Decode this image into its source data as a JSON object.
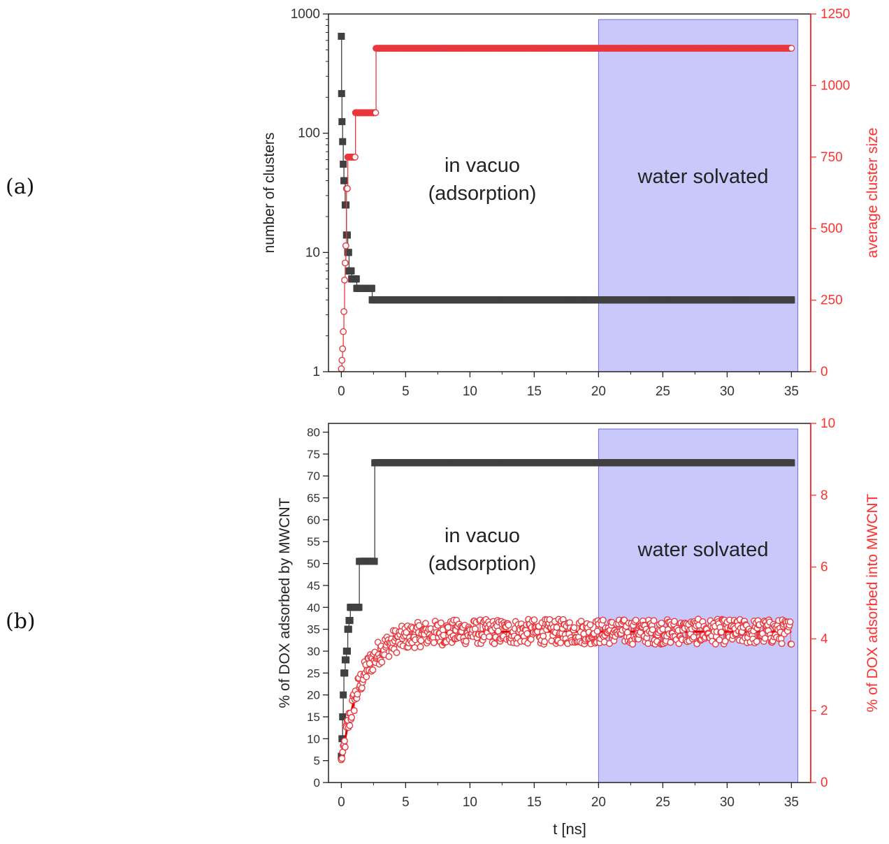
{
  "colors": {
    "black_series": "#404040",
    "red_series": "#e8393f",
    "red_axis": "#ff3030",
    "water_region": "#aaaaf8",
    "water_border": "#6a6af0"
  },
  "panels": {
    "a": {
      "label": "(a)"
    },
    "b": {
      "label": "(b)"
    }
  },
  "chart_data": [
    {
      "id": "a",
      "type": "scatter",
      "title": "",
      "xlabel": "",
      "x_ticks": [
        "0",
        "5",
        "10",
        "15",
        "20",
        "25",
        "30",
        "35"
      ],
      "xlim": [
        -1,
        36.5
      ],
      "ylabel": "number of clusters",
      "ylabel_right": "average cluster size",
      "y_scale": "log",
      "ylim": [
        1,
        1000
      ],
      "y_ticks": [
        "1",
        "10",
        "100",
        "1000"
      ],
      "y2lim": [
        0,
        1250
      ],
      "y2_ticks": [
        "0",
        "250",
        "500",
        "750",
        "1000",
        "1250"
      ],
      "shaded_region": {
        "x_start": 20,
        "x_end": 35.5,
        "label": "water solvated"
      },
      "annotation": {
        "line1": "in vacuo",
        "line2": "(adsorption)"
      },
      "series": [
        {
          "name": "number of clusters",
          "axis": "left",
          "marker": "square",
          "steps": [
            [
              0,
              650
            ],
            [
              0.02,
              215
            ],
            [
              0.05,
              125
            ],
            [
              0.1,
              85
            ],
            [
              0.15,
              55
            ],
            [
              0.2,
              40
            ],
            [
              0.3,
              25
            ],
            [
              0.4,
              14
            ],
            [
              0.5,
              10
            ],
            [
              0.6,
              7
            ],
            [
              0.8,
              6
            ],
            [
              1.2,
              5
            ],
            [
              2.4,
              4
            ],
            [
              35,
              4
            ]
          ]
        },
        {
          "name": "average cluster size",
          "axis": "right",
          "marker": "open-circle",
          "steps": [
            [
              0,
              10
            ],
            [
              0.05,
              40
            ],
            [
              0.1,
              80
            ],
            [
              0.15,
              140
            ],
            [
              0.2,
              210
            ],
            [
              0.25,
              320
            ],
            [
              0.3,
              380
            ],
            [
              0.35,
              440
            ],
            [
              0.4,
              640
            ],
            [
              0.5,
              750
            ],
            [
              1.0,
              750
            ],
            [
              1.1,
              905
            ],
            [
              2.6,
              905
            ],
            [
              2.7,
              1130
            ],
            [
              35,
              1130
            ]
          ]
        }
      ]
    },
    {
      "id": "b",
      "type": "scatter",
      "title": "",
      "xlabel": "t [ns]",
      "x_ticks": [
        "0",
        "5",
        "10",
        "15",
        "20",
        "25",
        "30",
        "35"
      ],
      "xlim": [
        -1,
        36.5
      ],
      "ylabel": "% of DOX adsorbed by MWCNT",
      "ylabel_right": "% of DOX adsorbed into MWCNT",
      "ylim": [
        0,
        82
      ],
      "y_ticks": [
        "0",
        "5",
        "10",
        "15",
        "20",
        "25",
        "30",
        "35",
        "40",
        "45",
        "50",
        "55",
        "60",
        "65",
        "70",
        "75",
        "80"
      ],
      "y2lim": [
        0,
        10
      ],
      "y2_ticks": [
        "0",
        "2",
        "4",
        "6",
        "8",
        "10"
      ],
      "shaded_region": {
        "x_start": 20,
        "x_end": 35.5,
        "label": "water solvated"
      },
      "annotation": {
        "line1": "in vacuo",
        "line2": "(adsorption)"
      },
      "series": [
        {
          "name": "% of DOX adsorbed by MWCNT",
          "axis": "left",
          "marker": "square",
          "steps": [
            [
              0,
              6
            ],
            [
              0.05,
              10
            ],
            [
              0.1,
              15
            ],
            [
              0.15,
              20
            ],
            [
              0.2,
              25
            ],
            [
              0.3,
              28
            ],
            [
              0.4,
              30
            ],
            [
              0.5,
              35
            ],
            [
              0.6,
              37
            ],
            [
              0.7,
              40
            ],
            [
              1.4,
              50.5
            ],
            [
              2.6,
              73
            ],
            [
              35,
              73
            ]
          ]
        },
        {
          "name": "% of DOX adsorbed into MWCNT",
          "axis": "right",
          "marker": "open-circle",
          "model": {
            "equation": "y = 4.2 - 3.6*exp(-t/1.6)",
            "t_range": [
              0,
              35
            ],
            "noise_amplitude": 0.35
          }
        }
      ]
    }
  ]
}
